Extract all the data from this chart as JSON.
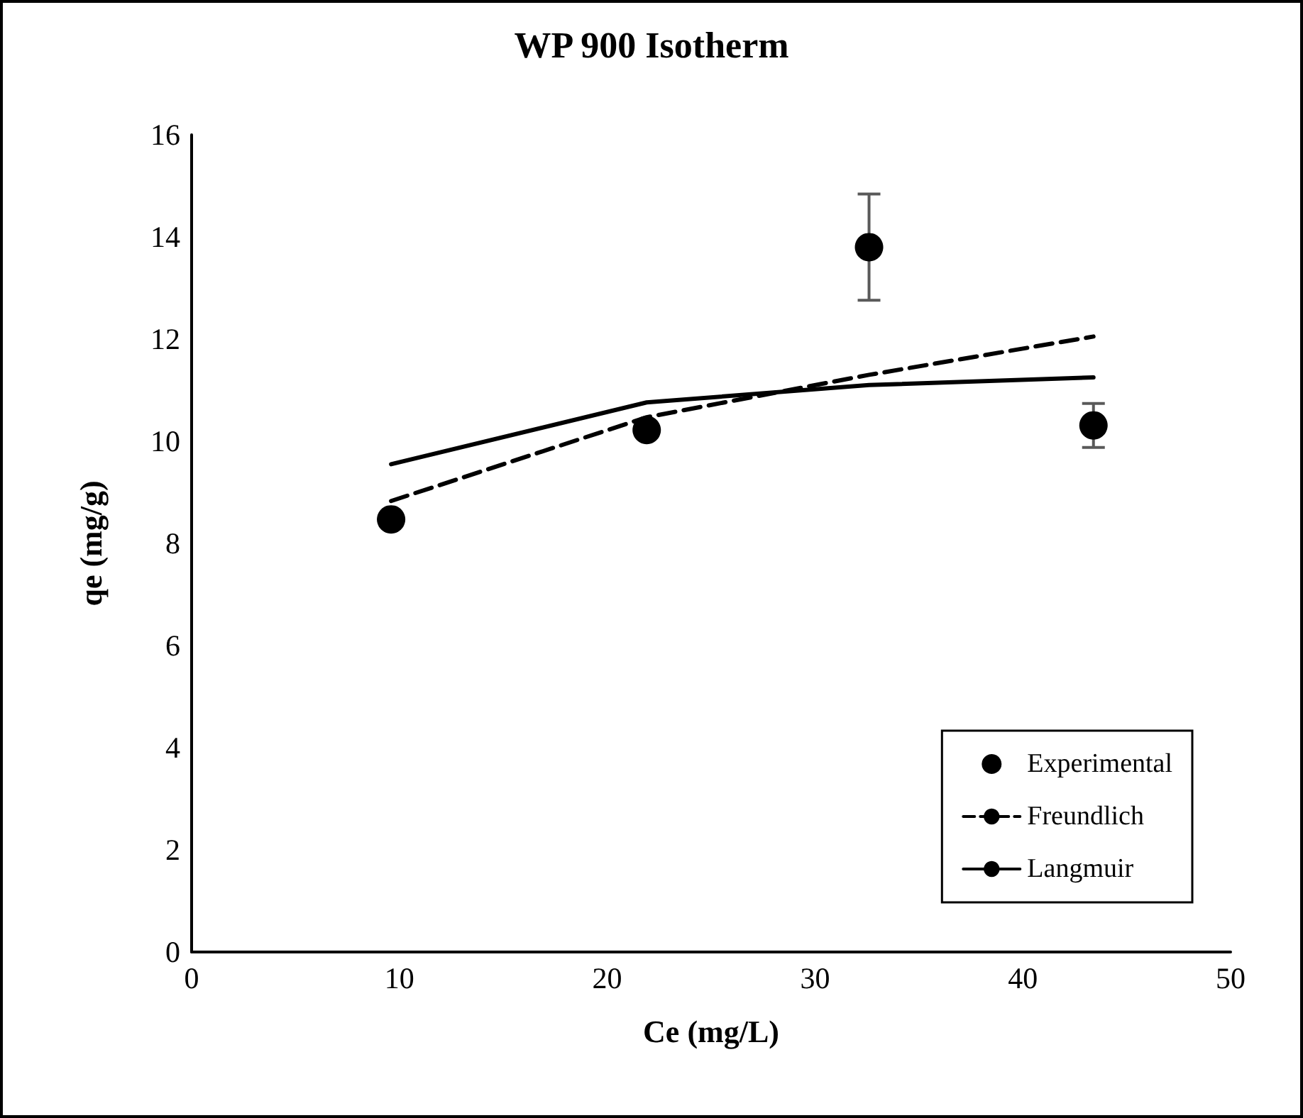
{
  "chart_data": {
    "type": "scatter",
    "title": "WP 900 Isotherm",
    "xlabel": "Ce (mg/L)",
    "ylabel": "qe (mg/g)",
    "xlim": [
      0,
      50
    ],
    "xticks": [
      0,
      10,
      20,
      30,
      40,
      50
    ],
    "ylim": [
      0,
      16
    ],
    "yticks": [
      0,
      2,
      4,
      6,
      8,
      10,
      12,
      14,
      16
    ],
    "grid": false,
    "legend": "bottom right",
    "series": [
      {
        "name": "Experimental",
        "color": "#000000",
        "marker": "circle",
        "x": [
          9.6,
          21.9,
          32.6,
          43.4
        ],
        "values": [
          8.47,
          10.22,
          13.8,
          10.31
        ],
        "errors": [
          null,
          null,
          1.04,
          0.43
        ]
      },
      {
        "name": "Freundlich",
        "type": "line",
        "color": "#000000",
        "line_style": "dashed",
        "marker": "none",
        "x": [
          9.6,
          21.9,
          32.6,
          43.4
        ],
        "values": [
          8.83,
          10.47,
          11.3,
          12.05
        ]
      },
      {
        "name": "Langmuir",
        "type": "line",
        "color": "#000000",
        "line_style": "solid",
        "marker": "none",
        "x": [
          9.6,
          21.9,
          32.6,
          43.4
        ],
        "values": [
          9.55,
          10.76,
          11.1,
          11.25
        ]
      }
    ]
  }
}
